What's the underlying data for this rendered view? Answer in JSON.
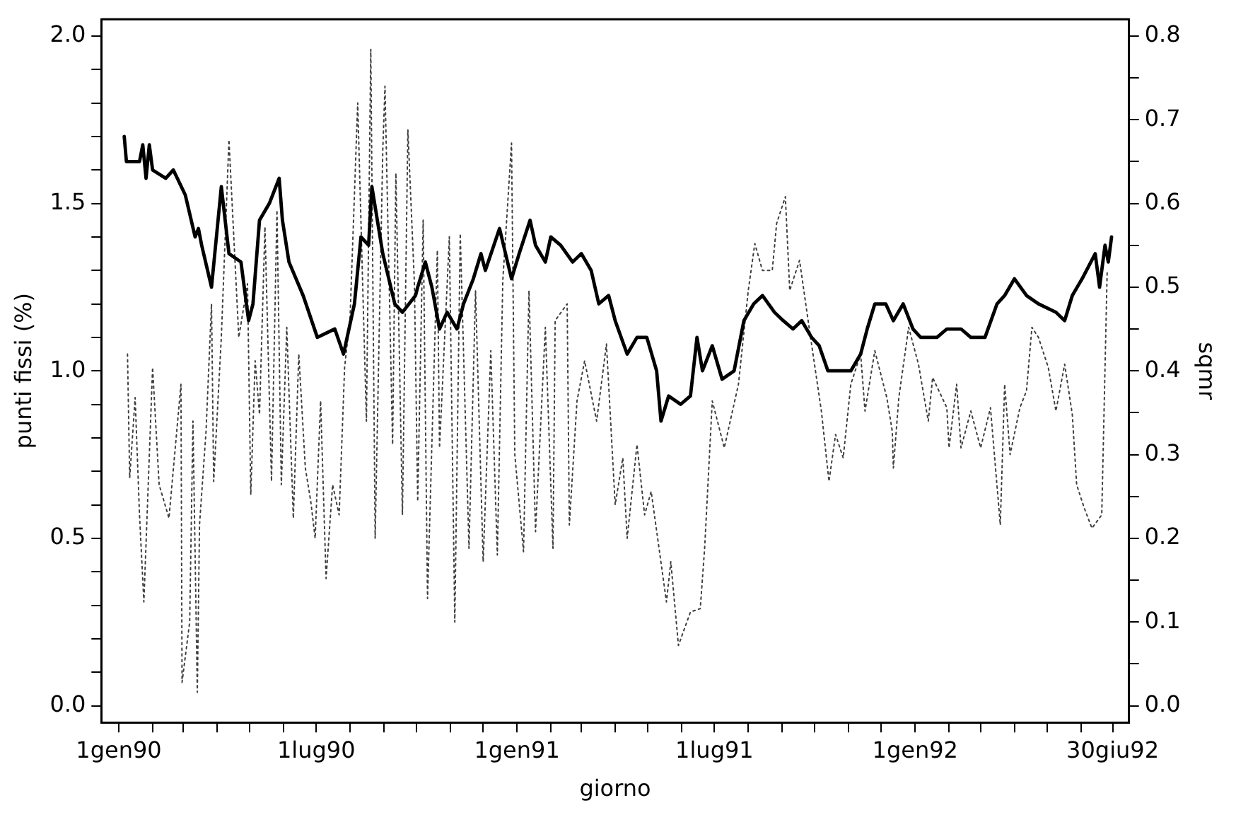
{
  "chart_data": {
    "type": "line",
    "xlabel": "giorno",
    "ylabel": "punti fissi (%)",
    "y2label": "sqmr",
    "xlim": [
      "1989-12-16",
      "1992-07-15"
    ],
    "xticks": [
      {
        "value": "1990-01-01",
        "label": "1gen90"
      },
      {
        "value": "1990-02-01",
        "label": null
      },
      {
        "value": "1990-03-01",
        "label": null
      },
      {
        "value": "1990-04-01",
        "label": null
      },
      {
        "value": "1990-05-01",
        "label": null
      },
      {
        "value": "1990-06-01",
        "label": null
      },
      {
        "value": "1990-07-01",
        "label": "1lug90"
      },
      {
        "value": "1990-08-01",
        "label": null
      },
      {
        "value": "1990-09-01",
        "label": null
      },
      {
        "value": "1990-10-01",
        "label": null
      },
      {
        "value": "1990-11-01",
        "label": null
      },
      {
        "value": "1990-12-01",
        "label": null
      },
      {
        "value": "1991-01-01",
        "label": "1gen91"
      },
      {
        "value": "1991-02-01",
        "label": null
      },
      {
        "value": "1991-03-01",
        "label": null
      },
      {
        "value": "1991-04-01",
        "label": null
      },
      {
        "value": "1991-05-01",
        "label": null
      },
      {
        "value": "1991-06-01",
        "label": null
      },
      {
        "value": "1991-07-01",
        "label": "1lug91"
      },
      {
        "value": "1991-08-01",
        "label": null
      },
      {
        "value": "1991-09-01",
        "label": null
      },
      {
        "value": "1991-10-01",
        "label": null
      },
      {
        "value": "1991-11-01",
        "label": null
      },
      {
        "value": "1991-12-01",
        "label": null
      },
      {
        "value": "1992-01-01",
        "label": "1gen92"
      },
      {
        "value": "1992-02-01",
        "label": null
      },
      {
        "value": "1992-03-01",
        "label": null
      },
      {
        "value": "1992-04-01",
        "label": null
      },
      {
        "value": "1992-05-01",
        "label": null
      },
      {
        "value": "1992-06-01",
        "label": null
      },
      {
        "value": "1992-06-30",
        "label": "30giu92"
      }
    ],
    "ylim": [
      -0.05,
      2.05
    ],
    "yticks": [
      {
        "value": 0,
        "label": "0.0"
      },
      {
        "value": 0.1,
        "label": null
      },
      {
        "value": 0.2,
        "label": null
      },
      {
        "value": 0.3,
        "label": null
      },
      {
        "value": 0.4,
        "label": null
      },
      0.5,
      {
        "value": 0.6,
        "label": null
      },
      {
        "value": 0.7,
        "label": null
      },
      {
        "value": 0.8,
        "label": null
      },
      {
        "value": 0.9,
        "label": null
      },
      {
        "value": 1,
        "label": "1.0"
      },
      {
        "value": 1.1,
        "label": null
      },
      {
        "value": 1.2,
        "label": null
      },
      {
        "value": 1.3,
        "label": null
      },
      {
        "value": 1.4,
        "label": null
      },
      1.5,
      {
        "value": 1.6,
        "label": null
      },
      {
        "value": 1.7,
        "label": null
      },
      {
        "value": 1.8,
        "label": null
      },
      {
        "value": 1.9,
        "label": null
      },
      {
        "value": 2,
        "label": "2.0"
      }
    ],
    "y2lim": [
      -0.02,
      0.82
    ],
    "y2ticks": [
      {
        "value": 0,
        "label": "0.0"
      },
      {
        "value": 0.05,
        "label": null
      },
      0.1,
      {
        "value": 0.15,
        "label": null
      },
      0.2,
      {
        "value": 0.25,
        "label": null
      },
      0.3,
      {
        "value": 0.35,
        "label": null
      },
      0.4,
      {
        "value": 0.45,
        "label": null
      },
      0.5,
      {
        "value": 0.55,
        "label": null
      },
      0.6,
      {
        "value": 0.65,
        "label": null
      },
      0.7,
      {
        "value": 0.75,
        "label": null
      },
      0.8
    ],
    "marker": "none",
    "series": [
      {
        "color": "#404040",
        "line_style": "dotted",
        "x": [
          "1990-01-09",
          "1990-01-11",
          "1990-01-16",
          "1990-01-20",
          "1990-01-24",
          "1990-02-01",
          "1990-02-07",
          "1990-02-16",
          "1990-02-27",
          "1990-02-28",
          "1990-03-07",
          "1990-03-10",
          "1990-03-14",
          "1990-03-16",
          "1990-03-22",
          "1990-03-27",
          "1990-03-29",
          "1990-04-05",
          "1990-04-12",
          "1990-04-21",
          "1990-04-29",
          "1990-05-02",
          "1990-05-06",
          "1990-05-10",
          "1990-05-15",
          "1990-05-21",
          "1990-05-26",
          "1990-05-30",
          "1990-06-04",
          "1990-06-10",
          "1990-06-15",
          "1990-06-21",
          "1990-06-26",
          "1990-06-30",
          "1990-07-05",
          "1990-07-10",
          "1990-07-16",
          "1990-07-22",
          "1990-07-27",
          "1990-08-01",
          "1990-08-08",
          "1990-08-16",
          "1990-08-20",
          "1990-08-24",
          "1990-08-31",
          "1990-09-02",
          "1990-09-09",
          "1990-09-12",
          "1990-09-18",
          "1990-09-23",
          "1990-09-29",
          "1990-10-02",
          "1990-10-07",
          "1990-10-11",
          "1990-10-20",
          "1990-10-22",
          "1990-10-31",
          "1990-11-05",
          "1990-11-10",
          "1990-11-18",
          "1990-11-24",
          "1990-12-01",
          "1990-12-08",
          "1990-12-14",
          "1990-12-19",
          "1990-12-27",
          "1990-12-30",
          "1991-01-07",
          "1991-01-12",
          "1991-01-18",
          "1991-01-27",
          "1991-02-03",
          "1991-02-05",
          "1991-02-16",
          "1991-02-18",
          "1991-02-25",
          "1991-03-04",
          "1991-03-15",
          "1991-03-24",
          "1991-04-01",
          "1991-04-08",
          "1991-04-12",
          "1991-04-21",
          "1991-04-28",
          "1991-05-04",
          "1991-05-18",
          "1991-05-22",
          "1991-05-29",
          "1991-06-09",
          "1991-06-18",
          "1991-06-22",
          "1991-06-29",
          "1991-07-10",
          "1991-07-23",
          "1991-08-01",
          "1991-08-07",
          "1991-08-14",
          "1991-08-23",
          "1991-08-27",
          "1991-09-04",
          "1991-09-08",
          "1991-09-17",
          "1991-09-24",
          "1991-09-28",
          "1991-10-07",
          "1991-10-14",
          "1991-10-20",
          "1991-10-27",
          "1991-11-03",
          "1991-11-12",
          "1991-11-16",
          "1991-11-25",
          "1991-12-06",
          "1991-12-11",
          "1991-12-12",
          "1991-12-17",
          "1991-12-26",
          "1992-01-04",
          "1992-01-13",
          "1992-01-17",
          "1992-01-30",
          "1992-02-01",
          "1992-02-08",
          "1992-02-12",
          "1992-02-21",
          "1992-03-01",
          "1992-03-10",
          "1992-03-19",
          "1992-03-23",
          "1992-03-28",
          "1992-04-06",
          "1992-04-12",
          "1992-04-17",
          "1992-04-23",
          "1992-05-02",
          "1992-05-09",
          "1992-05-17",
          "1992-05-24",
          "1992-05-28",
          "1992-06-04",
          "1992-06-11",
          "1992-06-20",
          "1992-06-25"
        ],
        "values": [
          1.05,
          0.68,
          0.92,
          0.57,
          0.31,
          1.01,
          0.66,
          0.56,
          0.96,
          0.07,
          0.25,
          0.85,
          0.04,
          0.54,
          0.82,
          1.2,
          0.67,
          1.1,
          1.69,
          1.1,
          1.26,
          0.63,
          1.03,
          0.87,
          1.43,
          0.67,
          1.48,
          0.66,
          1.13,
          0.56,
          1.05,
          0.71,
          0.61,
          0.5,
          0.91,
          0.38,
          0.66,
          0.57,
          1.01,
          1.16,
          1.8,
          0.85,
          1.96,
          0.5,
          1.66,
          1.85,
          0.78,
          1.59,
          0.57,
          1.72,
          1.26,
          0.61,
          1.45,
          0.32,
          1.36,
          0.77,
          1.4,
          0.25,
          1.41,
          0.47,
          1.24,
          0.43,
          1.06,
          0.45,
          1.27,
          1.68,
          0.75,
          0.46,
          1.24,
          0.52,
          1.13,
          0.47,
          1.15,
          1.2,
          0.54,
          0.91,
          1.03,
          0.85,
          1.08,
          0.6,
          0.74,
          0.5,
          0.78,
          0.57,
          0.64,
          0.31,
          0.43,
          0.18,
          0.28,
          0.29,
          0.47,
          0.91,
          0.77,
          0.96,
          1.24,
          1.38,
          1.3,
          1.3,
          1.44,
          1.52,
          1.24,
          1.33,
          1.17,
          1.08,
          0.88,
          0.67,
          0.81,
          0.74,
          0.96,
          1.05,
          0.88,
          1.06,
          0.92,
          0.82,
          0.71,
          0.92,
          1.13,
          1.02,
          0.85,
          0.98,
          0.89,
          0.77,
          0.96,
          0.77,
          0.88,
          0.77,
          0.89,
          0.54,
          0.96,
          0.75,
          0.89,
          0.94,
          1.13,
          1.1,
          1.01,
          0.88,
          1.02,
          0.87,
          0.66,
          0.59,
          0.53,
          0.57,
          1.3
        ]
      },
      {
        "color": "#000000",
        "line_style": "solid",
        "axis": "y2",
        "x": [
          "1990-01-06",
          "1990-01-08",
          "1990-01-20",
          "1990-01-23",
          "1990-01-26",
          "1990-01-29",
          "1990-02-01",
          "1990-02-13",
          "1990-02-20",
          "1990-03-03",
          "1990-03-12",
          "1990-03-15",
          "1990-03-18",
          "1990-03-27",
          "1990-04-05",
          "1990-04-12",
          "1990-04-23",
          "1990-04-30",
          "1990-05-04",
          "1990-05-10",
          "1990-05-19",
          "1990-05-28",
          "1990-05-31",
          "1990-06-06",
          "1990-06-19",
          "1990-07-02",
          "1990-07-18",
          "1990-07-26",
          "1990-08-05",
          "1990-08-11",
          "1990-08-18",
          "1990-08-21",
          "1990-08-31",
          "1990-09-11",
          "1990-09-18",
          "1990-09-30",
          "1990-10-02",
          "1990-10-09",
          "1990-10-15",
          "1990-10-22",
          "1990-10-29",
          "1990-11-07",
          "1990-11-13",
          "1990-11-22",
          "1990-11-29",
          "1990-12-03",
          "1990-12-16",
          "1990-12-27",
          "1991-01-03",
          "1991-01-13",
          "1991-01-18",
          "1991-01-27",
          "1991-02-01",
          "1991-02-10",
          "1991-02-21",
          "1991-03-01",
          "1991-03-10",
          "1991-03-17",
          "1991-03-26",
          "1991-04-01",
          "1991-04-12",
          "1991-04-21",
          "1991-04-30",
          "1991-05-09",
          "1991-05-13",
          "1991-05-20",
          "1991-05-31",
          "1991-06-09",
          "1991-06-15",
          "1991-06-20",
          "1991-06-29",
          "1991-07-08",
          "1991-07-19",
          "1991-07-28",
          "1991-08-06",
          "1991-08-14",
          "1991-08-25",
          "1991-09-02",
          "1991-09-11",
          "1991-09-19",
          "1991-09-28",
          "1991-10-05",
          "1991-10-13",
          "1991-10-20",
          "1991-11-03",
          "1991-11-12",
          "1991-11-18",
          "1991-11-25",
          "1991-12-05",
          "1991-12-12",
          "1991-12-21",
          "1991-12-30",
          "1992-01-06",
          "1992-01-21",
          "1992-01-30",
          "1992-02-12",
          "1992-02-21",
          "1992-03-05",
          "1992-03-16",
          "1992-03-23",
          "1992-04-01",
          "1992-04-12",
          "1992-04-23",
          "1992-05-09",
          "1992-05-17",
          "1992-05-24",
          "1992-06-02",
          "1992-06-14",
          "1992-06-18",
          "1992-06-23",
          "1992-06-26",
          "1992-06-29"
        ],
        "values": [
          0.68,
          0.65,
          0.65,
          0.67,
          0.63,
          0.67,
          0.64,
          0.63,
          0.64,
          0.61,
          0.56,
          0.57,
          0.55,
          0.5,
          0.62,
          0.54,
          0.53,
          0.46,
          0.48,
          0.58,
          0.6,
          0.63,
          0.58,
          0.53,
          0.49,
          0.44,
          0.45,
          0.42,
          0.48,
          0.56,
          0.55,
          0.62,
          0.54,
          0.48,
          0.47,
          0.49,
          0.5,
          0.53,
          0.5,
          0.45,
          0.47,
          0.45,
          0.48,
          0.51,
          0.54,
          0.52,
          0.57,
          0.51,
          0.54,
          0.58,
          0.55,
          0.53,
          0.56,
          0.55,
          0.53,
          0.54,
          0.52,
          0.48,
          0.49,
          0.46,
          0.42,
          0.44,
          0.44,
          0.4,
          0.34,
          0.37,
          0.36,
          0.37,
          0.44,
          0.4,
          0.43,
          0.39,
          0.4,
          0.46,
          0.48,
          0.49,
          0.47,
          0.46,
          0.45,
          0.46,
          0.44,
          0.43,
          0.4,
          0.4,
          0.4,
          0.42,
          0.45,
          0.48,
          0.48,
          0.46,
          0.48,
          0.45,
          0.44,
          0.44,
          0.45,
          0.45,
          0.44,
          0.44,
          0.48,
          0.49,
          0.51,
          0.49,
          0.48,
          0.47,
          0.46,
          0.49,
          0.51,
          0.54,
          0.5,
          0.55,
          0.53,
          0.56
        ]
      }
    ]
  }
}
